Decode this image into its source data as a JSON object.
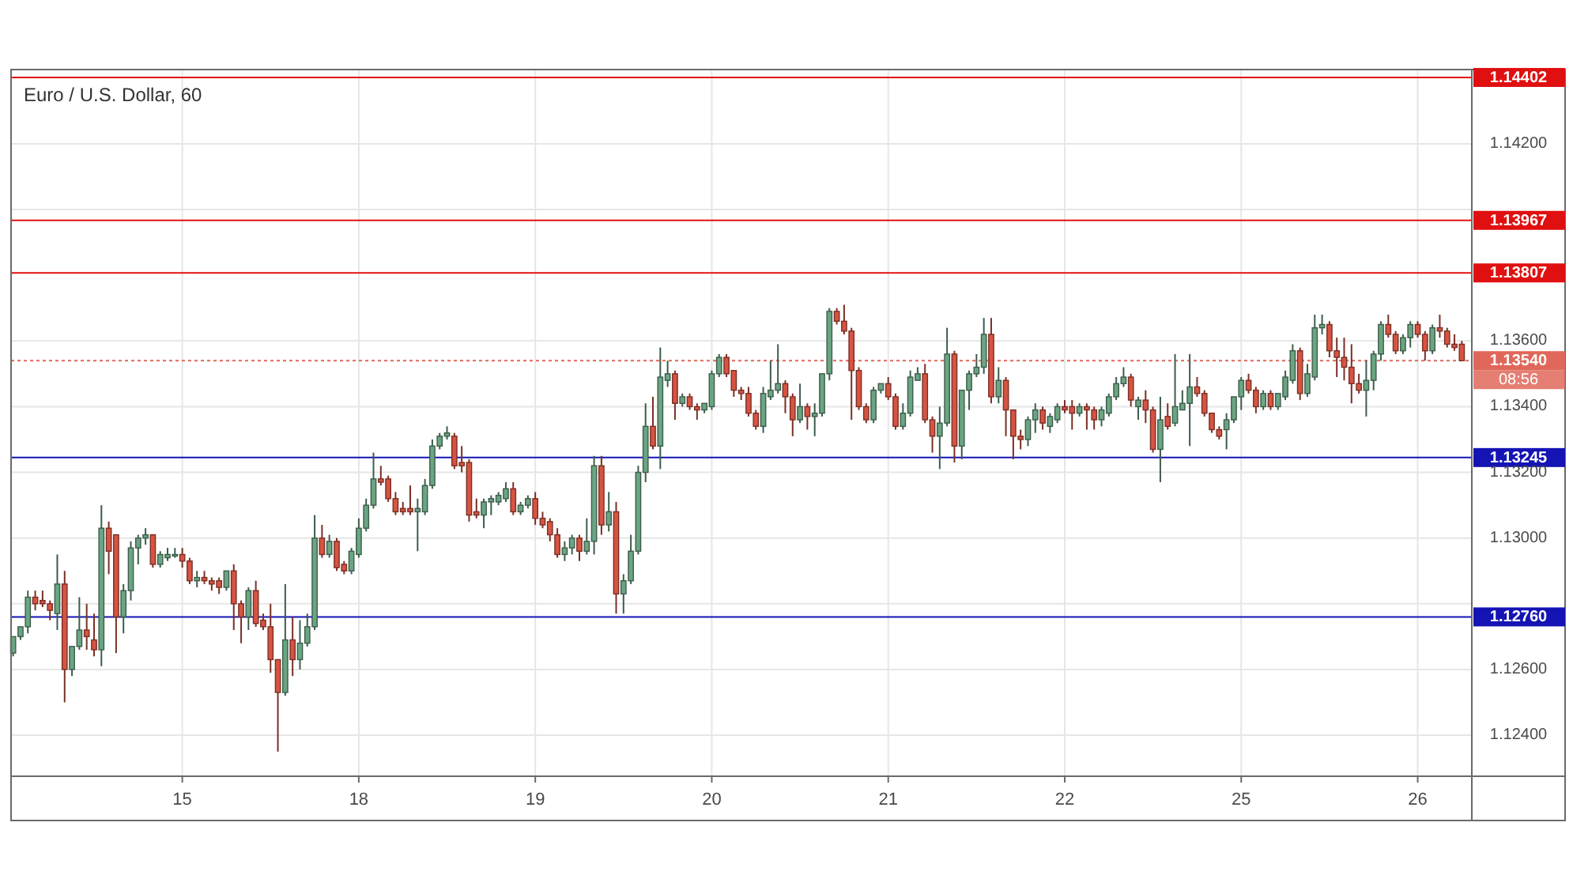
{
  "chart_data": {
    "type": "candlestick",
    "title": "Euro / U.S. Dollar, 60",
    "categories": [
      null,
      null,
      null,
      null,
      null,
      null,
      null,
      null,
      null,
      null,
      null,
      null,
      null,
      null,
      null,
      null,
      null,
      null,
      null,
      null,
      null,
      null,
      null,
      "15",
      null,
      null,
      null,
      null,
      null,
      null,
      null,
      null,
      null,
      null,
      null,
      null,
      null,
      null,
      null,
      null,
      null,
      null,
      null,
      null,
      null,
      null,
      null,
      "18",
      null,
      null,
      null,
      null,
      null,
      null,
      null,
      null,
      null,
      null,
      null,
      null,
      null,
      null,
      null,
      null,
      null,
      null,
      null,
      null,
      null,
      null,
      null,
      "19",
      null,
      null,
      null,
      null,
      null,
      null,
      null,
      null,
      null,
      null,
      null,
      null,
      null,
      null,
      null,
      null,
      null,
      null,
      null,
      null,
      null,
      null,
      null,
      "20",
      null,
      null,
      null,
      null,
      null,
      null,
      null,
      null,
      null,
      null,
      null,
      null,
      null,
      null,
      null,
      null,
      null,
      null,
      null,
      null,
      null,
      null,
      null,
      "21",
      null,
      null,
      null,
      null,
      null,
      null,
      null,
      null,
      null,
      null,
      null,
      null,
      null,
      null,
      null,
      null,
      null,
      null,
      null,
      null,
      null,
      null,
      null,
      "22",
      null,
      null,
      null,
      null,
      null,
      null,
      null,
      null,
      null,
      null,
      null,
      null,
      null,
      null,
      null,
      null,
      null,
      null,
      null,
      null,
      null,
      null,
      null,
      "25",
      null,
      null,
      null,
      null,
      null,
      null,
      null,
      null,
      null,
      null,
      null,
      null,
      null,
      null,
      null,
      null,
      null,
      null,
      null,
      null,
      null,
      null,
      null,
      "26",
      null,
      null,
      null,
      null,
      null,
      null
    ],
    "ohlc": [
      [
        1.1265,
        1.127,
        1.1264,
        1.127
      ],
      [
        1.127,
        1.1273,
        1.1269,
        1.1273
      ],
      [
        1.1273,
        1.1284,
        1.1271,
        1.1282
      ],
      [
        1.1282,
        1.1284,
        1.1278,
        1.128
      ],
      [
        1.1281,
        1.1284,
        1.1279,
        1.128
      ],
      [
        1.128,
        1.1281,
        1.1275,
        1.1278
      ],
      [
        1.1277,
        1.1295,
        1.1272,
        1.1286
      ],
      [
        1.1286,
        1.129,
        1.125,
        1.126
      ],
      [
        1.126,
        1.1267,
        1.1258,
        1.1267
      ],
      [
        1.1267,
        1.1282,
        1.1266,
        1.1272
      ],
      [
        1.1272,
        1.128,
        1.1266,
        1.127
      ],
      [
        1.1269,
        1.1277,
        1.1264,
        1.1266
      ],
      [
        1.1266,
        1.131,
        1.1261,
        1.1303
      ],
      [
        1.1303,
        1.1305,
        1.1289,
        1.1296
      ],
      [
        1.1301,
        1.1301,
        1.1265,
        1.1276
      ],
      [
        1.1276,
        1.1286,
        1.1271,
        1.1284
      ],
      [
        1.1284,
        1.1299,
        1.1281,
        1.1297
      ],
      [
        1.1297,
        1.1301,
        1.1292,
        1.13
      ],
      [
        1.13,
        1.1303,
        1.1298,
        1.1301
      ],
      [
        1.1301,
        1.1301,
        1.1291,
        1.1292
      ],
      [
        1.1292,
        1.1296,
        1.1291,
        1.1295
      ],
      [
        1.1294,
        1.1297,
        1.1293,
        1.1295
      ],
      [
        1.1295,
        1.1297,
        1.1294,
        1.1295
      ],
      [
        1.1295,
        1.1297,
        1.1291,
        1.1293
      ],
      [
        1.1293,
        1.1294,
        1.1286,
        1.1287
      ],
      [
        1.1287,
        1.129,
        1.1285,
        1.1288
      ],
      [
        1.1288,
        1.129,
        1.1286,
        1.1287
      ],
      [
        1.1287,
        1.1288,
        1.1284,
        1.1286
      ],
      [
        1.1287,
        1.1288,
        1.1283,
        1.1285
      ],
      [
        1.1285,
        1.129,
        1.1284,
        1.129
      ],
      [
        1.129,
        1.1292,
        1.1272,
        1.128
      ],
      [
        1.128,
        1.1281,
        1.1268,
        1.1276
      ],
      [
        1.1276,
        1.1285,
        1.1272,
        1.1284
      ],
      [
        1.1284,
        1.1287,
        1.1273,
        1.1274
      ],
      [
        1.1275,
        1.1277,
        1.1272,
        1.1273
      ],
      [
        1.1273,
        1.128,
        1.1259,
        1.1263
      ],
      [
        1.1263,
        1.1263,
        1.1235,
        1.1253
      ],
      [
        1.1253,
        1.1286,
        1.1252,
        1.1269
      ],
      [
        1.1269,
        1.1276,
        1.1258,
        1.1263
      ],
      [
        1.1263,
        1.1275,
        1.126,
        1.1268
      ],
      [
        1.1268,
        1.1277,
        1.1267,
        1.1273
      ],
      [
        1.1273,
        1.1307,
        1.1272,
        1.13
      ],
      [
        1.13,
        1.1304,
        1.1294,
        1.1295
      ],
      [
        1.1295,
        1.1301,
        1.1294,
        1.1299
      ],
      [
        1.1299,
        1.13,
        1.129,
        1.1291
      ],
      [
        1.1292,
        1.1293,
        1.1289,
        1.129
      ],
      [
        1.129,
        1.1297,
        1.1289,
        1.1296
      ],
      [
        1.1295,
        1.1306,
        1.1294,
        1.1303
      ],
      [
        1.1303,
        1.1312,
        1.1302,
        1.131
      ],
      [
        1.131,
        1.1326,
        1.1309,
        1.1318
      ],
      [
        1.1318,
        1.1322,
        1.1316,
        1.1317
      ],
      [
        1.1318,
        1.1319,
        1.1311,
        1.1312
      ],
      [
        1.1312,
        1.1314,
        1.1307,
        1.1308
      ],
      [
        1.1309,
        1.1311,
        1.1307,
        1.1308
      ],
      [
        1.1309,
        1.1316,
        1.1307,
        1.1308
      ],
      [
        1.1308,
        1.1312,
        1.1296,
        1.1309
      ],
      [
        1.1308,
        1.1318,
        1.1307,
        1.1316
      ],
      [
        1.1316,
        1.133,
        1.1315,
        1.1328
      ],
      [
        1.1328,
        1.1332,
        1.1327,
        1.1331
      ],
      [
        1.1331,
        1.1334,
        1.133,
        1.1332
      ],
      [
        1.1331,
        1.1332,
        1.1321,
        1.1322
      ],
      [
        1.1323,
        1.1328,
        1.132,
        1.1322
      ],
      [
        1.1323,
        1.1324,
        1.1305,
        1.1307
      ],
      [
        1.1308,
        1.1312,
        1.1306,
        1.1307
      ],
      [
        1.1307,
        1.1312,
        1.1303,
        1.1311
      ],
      [
        1.1311,
        1.1313,
        1.1307,
        1.1312
      ],
      [
        1.1311,
        1.1314,
        1.131,
        1.1313
      ],
      [
        1.1312,
        1.1317,
        1.1311,
        1.1315
      ],
      [
        1.1315,
        1.1317,
        1.1307,
        1.1308
      ],
      [
        1.1308,
        1.1311,
        1.1307,
        1.131
      ],
      [
        1.131,
        1.1313,
        1.1309,
        1.1312
      ],
      [
        1.1312,
        1.1314,
        1.1304,
        1.1306
      ],
      [
        1.1306,
        1.1308,
        1.1303,
        1.1304
      ],
      [
        1.1305,
        1.1306,
        1.1299,
        1.1301
      ],
      [
        1.1301,
        1.1303,
        1.1294,
        1.1295
      ],
      [
        1.1295,
        1.1299,
        1.1293,
        1.1297
      ],
      [
        1.1297,
        1.1301,
        1.1295,
        1.13
      ],
      [
        1.13,
        1.1301,
        1.1293,
        1.1296
      ],
      [
        1.1296,
        1.1306,
        1.1295,
        1.1299
      ],
      [
        1.1299,
        1.1325,
        1.1295,
        1.1322
      ],
      [
        1.1322,
        1.1325,
        1.1301,
        1.1304
      ],
      [
        1.1304,
        1.1314,
        1.1302,
        1.1308
      ],
      [
        1.1308,
        1.1311,
        1.1277,
        1.1283
      ],
      [
        1.1283,
        1.1289,
        1.1277,
        1.1287
      ],
      [
        1.1287,
        1.1301,
        1.1286,
        1.1296
      ],
      [
        1.1296,
        1.1322,
        1.1295,
        1.132
      ],
      [
        1.132,
        1.1341,
        1.1317,
        1.1334
      ],
      [
        1.1334,
        1.1343,
        1.1327,
        1.1328
      ],
      [
        1.1328,
        1.1358,
        1.1321,
        1.1349
      ],
      [
        1.1348,
        1.1354,
        1.1346,
        1.135
      ],
      [
        1.135,
        1.1351,
        1.1336,
        1.1341
      ],
      [
        1.1341,
        1.1344,
        1.134,
        1.1343
      ],
      [
        1.1343,
        1.1344,
        1.1339,
        1.134
      ],
      [
        1.134,
        1.1341,
        1.1336,
        1.1339
      ],
      [
        1.1339,
        1.1341,
        1.1338,
        1.1341
      ],
      [
        1.134,
        1.1351,
        1.1339,
        1.135
      ],
      [
        1.135,
        1.1356,
        1.1349,
        1.1355
      ],
      [
        1.1355,
        1.1356,
        1.1349,
        1.135
      ],
      [
        1.1351,
        1.1351,
        1.1343,
        1.1345
      ],
      [
        1.1345,
        1.1346,
        1.1342,
        1.1344
      ],
      [
        1.1344,
        1.1346,
        1.1337,
        1.1338
      ],
      [
        1.1338,
        1.1339,
        1.1333,
        1.1334
      ],
      [
        1.1334,
        1.1346,
        1.1332,
        1.1344
      ],
      [
        1.1343,
        1.1354,
        1.1342,
        1.1345
      ],
      [
        1.1345,
        1.1359,
        1.1344,
        1.1347
      ],
      [
        1.1347,
        1.1348,
        1.1338,
        1.1343
      ],
      [
        1.1343,
        1.1344,
        1.1331,
        1.1336
      ],
      [
        1.1336,
        1.1347,
        1.1335,
        1.134
      ],
      [
        1.134,
        1.1341,
        1.1333,
        1.1337
      ],
      [
        1.1337,
        1.1341,
        1.1331,
        1.1338
      ],
      [
        1.1338,
        1.135,
        1.1337,
        1.135
      ],
      [
        1.135,
        1.137,
        1.1348,
        1.1369
      ],
      [
        1.1369,
        1.137,
        1.1365,
        1.1366
      ],
      [
        1.1366,
        1.1371,
        1.1362,
        1.1363
      ],
      [
        1.1363,
        1.1364,
        1.1336,
        1.1351
      ],
      [
        1.1351,
        1.1352,
        1.1339,
        1.134
      ],
      [
        1.134,
        1.1341,
        1.1335,
        1.1336
      ],
      [
        1.1336,
        1.1346,
        1.1335,
        1.1345
      ],
      [
        1.1345,
        1.1347,
        1.1344,
        1.1347
      ],
      [
        1.1347,
        1.1349,
        1.1342,
        1.1343
      ],
      [
        1.1343,
        1.1344,
        1.1333,
        1.1334
      ],
      [
        1.1334,
        1.1341,
        1.1333,
        1.1338
      ],
      [
        1.1338,
        1.1351,
        1.1337,
        1.1349
      ],
      [
        1.1348,
        1.1352,
        1.1348,
        1.135
      ],
      [
        1.135,
        1.1353,
        1.1335,
        1.1336
      ],
      [
        1.1336,
        1.1337,
        1.1326,
        1.1331
      ],
      [
        1.1331,
        1.134,
        1.1321,
        1.1335
      ],
      [
        1.1335,
        1.1364,
        1.1334,
        1.1356
      ],
      [
        1.1356,
        1.1357,
        1.1323,
        1.1328
      ],
      [
        1.1328,
        1.1345,
        1.1324,
        1.1345
      ],
      [
        1.1345,
        1.1351,
        1.1339,
        1.135
      ],
      [
        1.135,
        1.1356,
        1.1349,
        1.1352
      ],
      [
        1.1352,
        1.1367,
        1.135,
        1.1362
      ],
      [
        1.1362,
        1.1367,
        1.1341,
        1.1343
      ],
      [
        1.1343,
        1.1352,
        1.1341,
        1.1348
      ],
      [
        1.1348,
        1.1349,
        1.1331,
        1.1339
      ],
      [
        1.1339,
        1.1339,
        1.1324,
        1.1331
      ],
      [
        1.1331,
        1.1333,
        1.1327,
        1.133
      ],
      [
        1.133,
        1.1337,
        1.1328,
        1.1336
      ],
      [
        1.1336,
        1.1341,
        1.1332,
        1.1339
      ],
      [
        1.1339,
        1.134,
        1.1333,
        1.1335
      ],
      [
        1.1334,
        1.1338,
        1.1332,
        1.1337
      ],
      [
        1.1336,
        1.1341,
        1.1335,
        1.134
      ],
      [
        1.134,
        1.1342,
        1.1338,
        1.1339
      ],
      [
        1.134,
        1.1342,
        1.1333,
        1.1338
      ],
      [
        1.1338,
        1.1341,
        1.1337,
        1.134
      ],
      [
        1.134,
        1.1341,
        1.1333,
        1.1339
      ],
      [
        1.1339,
        1.134,
        1.1333,
        1.1336
      ],
      [
        1.1336,
        1.134,
        1.1334,
        1.1339
      ],
      [
        1.1338,
        1.1344,
        1.1337,
        1.1343
      ],
      [
        1.1343,
        1.1349,
        1.1342,
        1.1347
      ],
      [
        1.1347,
        1.1352,
        1.1346,
        1.1349
      ],
      [
        1.1349,
        1.135,
        1.134,
        1.1342
      ],
      [
        1.134,
        1.1343,
        1.1336,
        1.1342
      ],
      [
        1.1342,
        1.1345,
        1.1335,
        1.1339
      ],
      [
        1.1339,
        1.134,
        1.1326,
        1.1327
      ],
      [
        1.1327,
        1.1343,
        1.1317,
        1.1336
      ],
      [
        1.1337,
        1.1341,
        1.1333,
        1.1334
      ],
      [
        1.1335,
        1.1356,
        1.1334,
        1.134
      ],
      [
        1.1339,
        1.1345,
        1.1339,
        1.1341
      ],
      [
        1.1341,
        1.1356,
        1.1328,
        1.1346
      ],
      [
        1.1346,
        1.1349,
        1.1343,
        1.1344
      ],
      [
        1.1344,
        1.1345,
        1.1337,
        1.1338
      ],
      [
        1.1338,
        1.1338,
        1.1332,
        1.1333
      ],
      [
        1.1333,
        1.1334,
        1.133,
        1.1331
      ],
      [
        1.1333,
        1.1338,
        1.1327,
        1.1336
      ],
      [
        1.1336,
        1.1343,
        1.1335,
        1.1343
      ],
      [
        1.1343,
        1.1349,
        1.1339,
        1.1348
      ],
      [
        1.1348,
        1.135,
        1.1344,
        1.1345
      ],
      [
        1.1345,
        1.1346,
        1.1338,
        1.134
      ],
      [
        1.134,
        1.1345,
        1.1339,
        1.1344
      ],
      [
        1.1344,
        1.1345,
        1.1339,
        1.134
      ],
      [
        1.134,
        1.1344,
        1.1339,
        1.1344
      ],
      [
        1.1343,
        1.1351,
        1.1342,
        1.1349
      ],
      [
        1.1348,
        1.1359,
        1.1347,
        1.1357
      ],
      [
        1.1357,
        1.1358,
        1.1342,
        1.1344
      ],
      [
        1.1344,
        1.1353,
        1.1343,
        1.135
      ],
      [
        1.1349,
        1.1368,
        1.1348,
        1.1364
      ],
      [
        1.1364,
        1.1368,
        1.1362,
        1.1365
      ],
      [
        1.1365,
        1.1366,
        1.1355,
        1.1357
      ],
      [
        1.1357,
        1.1361,
        1.1349,
        1.1355
      ],
      [
        1.1355,
        1.1361,
        1.1348,
        1.1352
      ],
      [
        1.1352,
        1.1359,
        1.1341,
        1.1347
      ],
      [
        1.1347,
        1.135,
        1.1344,
        1.1345
      ],
      [
        1.1345,
        1.1354,
        1.1337,
        1.1348
      ],
      [
        1.1348,
        1.1357,
        1.1345,
        1.1356
      ],
      [
        1.1356,
        1.1366,
        1.1354,
        1.1365
      ],
      [
        1.1365,
        1.1368,
        1.1361,
        1.1362
      ],
      [
        1.1362,
        1.1363,
        1.1356,
        1.1357
      ],
      [
        1.1357,
        1.1362,
        1.1356,
        1.1361
      ],
      [
        1.1361,
        1.1366,
        1.1358,
        1.1365
      ],
      [
        1.1365,
        1.1366,
        1.1361,
        1.1362
      ],
      [
        1.1362,
        1.1363,
        1.1354,
        1.1357
      ],
      [
        1.1357,
        1.1365,
        1.1356,
        1.1364
      ],
      [
        1.1364,
        1.1368,
        1.1361,
        1.1363
      ],
      [
        1.1363,
        1.1364,
        1.1358,
        1.1359
      ],
      [
        1.1359,
        1.1362,
        1.1357,
        1.1358
      ],
      [
        1.1359,
        1.136,
        1.1354,
        1.1354
      ]
    ],
    "colors": [
      "#6ba583",
      "#6ba583",
      "#6ba583",
      "#d75442",
      "#d75442",
      "#d75442",
      "#6ba583",
      "#d75442",
      "#6ba583",
      "#6ba583",
      "#d75442",
      "#d75442",
      "#6ba583",
      "#d75442",
      "#d75442",
      "#6ba583",
      "#6ba583",
      "#6ba583",
      "#6ba583",
      "#d75442",
      "#6ba583",
      "#6ba583",
      "#6ba583",
      "#d75442",
      "#d75442",
      "#6ba583",
      "#d75442",
      "#d75442",
      "#d75442",
      "#6ba583",
      "#d75442",
      "#d75442",
      "#6ba583",
      "#d75442",
      "#d75442",
      "#d75442",
      "#d75442",
      "#6ba583",
      "#d75442",
      "#6ba583",
      "#6ba583",
      "#6ba583",
      "#d75442",
      "#6ba583",
      "#d75442",
      "#d75442",
      "#6ba583",
      "#6ba583",
      "#6ba583",
      "#6ba583",
      "#d75442",
      "#d75442",
      "#d75442",
      "#d75442",
      "#d75442",
      "#6ba583",
      "#6ba583",
      "#6ba583",
      "#6ba583",
      "#6ba583",
      "#d75442",
      "#d75442",
      "#d75442",
      "#d75442",
      "#6ba583",
      "#6ba583",
      "#6ba583",
      "#6ba583",
      "#d75442",
      "#6ba583",
      "#6ba583",
      "#d75442",
      "#d75442",
      "#d75442",
      "#d75442",
      "#6ba583",
      "#6ba583",
      "#d75442",
      "#6ba583",
      "#6ba583",
      "#d75442",
      "#6ba583",
      "#d75442",
      "#6ba583",
      "#6ba583",
      "#6ba583",
      "#6ba583",
      "#d75442",
      "#6ba583",
      "#6ba583",
      "#d75442",
      "#6ba583",
      "#d75442",
      "#d75442",
      "#6ba583",
      "#6ba583",
      "#6ba583",
      "#d75442",
      "#d75442",
      "#d75442",
      "#d75442",
      "#d75442",
      "#6ba583",
      "#6ba583",
      "#6ba583",
      "#d75442",
      "#d75442",
      "#6ba583",
      "#d75442",
      "#6ba583",
      "#6ba583",
      "#6ba583",
      "#d75442",
      "#d75442",
      "#d75442",
      "#d75442",
      "#d75442",
      "#6ba583",
      "#6ba583",
      "#d75442",
      "#d75442",
      "#6ba583",
      "#6ba583",
      "#6ba583",
      "#d75442",
      "#d75442",
      "#6ba583",
      "#6ba583",
      "#d75442",
      "#6ba583",
      "#6ba583",
      "#6ba583",
      "#6ba583",
      "#d75442",
      "#6ba583",
      "#d75442",
      "#d75442",
      "#d75442",
      "#6ba583",
      "#6ba583",
      "#d75442",
      "#6ba583",
      "#6ba583",
      "#d75442",
      "#d75442",
      "#6ba583",
      "#d75442",
      "#d75442",
      "#6ba583",
      "#6ba583",
      "#6ba583",
      "#6ba583",
      "#d75442",
      "#6ba583",
      "#d75442",
      "#d75442",
      "#6ba583",
      "#d75442",
      "#6ba583",
      "#6ba583",
      "#6ba583",
      "#d75442",
      "#d75442",
      "#d75442",
      "#d75442",
      "#6ba583",
      "#6ba583",
      "#6ba583",
      "#d75442",
      "#d75442",
      "#6ba583",
      "#d75442",
      "#6ba583",
      "#6ba583",
      "#6ba583",
      "#d75442",
      "#6ba583",
      "#6ba583",
      "#6ba583",
      "#d75442",
      "#d75442",
      "#d75442",
      "#d75442",
      "#d75442",
      "#6ba583",
      "#6ba583",
      "#6ba583",
      "#d75442",
      "#d75442",
      "#6ba583",
      "#6ba583",
      "#d75442",
      "#d75442",
      "#6ba583",
      "#d75442",
      "#d75442",
      "#d75442",
      "#d75442"
    ],
    "ylim": [
      1.12275,
      1.14426
    ],
    "yticks": [
      {
        "value": 1.124,
        "label": "1.12400"
      },
      {
        "value": 1.126,
        "label": "1.12600"
      },
      {
        "value": 1.128,
        "label": null
      },
      {
        "value": 1.13,
        "label": "1.13000"
      },
      {
        "value": 1.132,
        "label": "1.13200"
      },
      {
        "value": 1.134,
        "label": "1.13400"
      },
      {
        "value": 1.136,
        "label": "1.13600"
      },
      {
        "value": 1.14,
        "label": null
      },
      {
        "value": 1.142,
        "label": "1.14200"
      }
    ],
    "grid": true,
    "ref_lines": [
      {
        "axis": "y",
        "value": 1.14402,
        "label": "1.14402",
        "color": "#e01010"
      },
      {
        "axis": "y",
        "value": 1.13967,
        "label": "1.13967",
        "color": "#e01010"
      },
      {
        "axis": "y",
        "value": 1.13807,
        "label": "1.13807",
        "color": "#e01010"
      },
      {
        "axis": "y",
        "value": 1.1354,
        "label": "1.13540\n08:56",
        "color": "#e0685a",
        "line_style": "dotted"
      },
      {
        "axis": "y",
        "value": 1.13245,
        "label": "1.13245",
        "color": "#1414b4"
      },
      {
        "axis": "y",
        "value": 1.1276,
        "label": "1.12760",
        "color": "#1414b4"
      }
    ]
  }
}
